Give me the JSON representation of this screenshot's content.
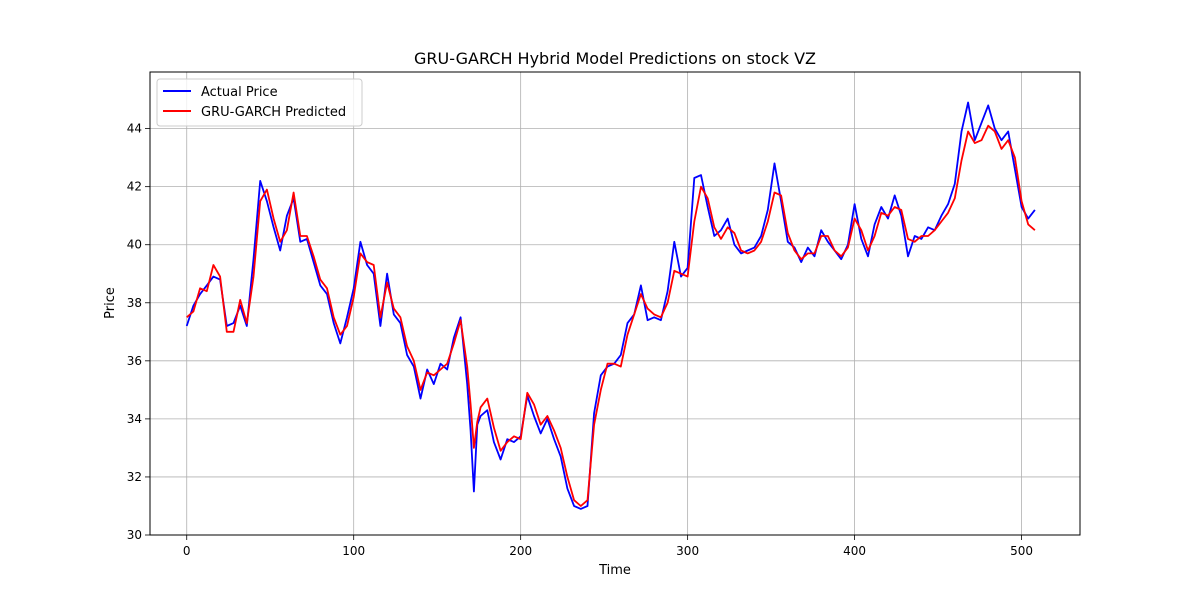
{
  "chart_data": {
    "type": "line",
    "title": "GRU-GARCH Hybrid Model Predictions on stock VZ",
    "xlabel": "Time",
    "ylabel": "Price",
    "xlim": [
      -22,
      535
    ],
    "ylim": [
      30.0,
      45.95
    ],
    "xticks": [
      0,
      100,
      200,
      300,
      400,
      500
    ],
    "yticks": [
      30,
      32,
      34,
      36,
      38,
      40,
      42,
      44
    ],
    "grid": true,
    "legend_position": "upper-left",
    "series": [
      {
        "name": "Actual Price",
        "color": "#0000ff",
        "x": [
          0,
          4,
          8,
          12,
          16,
          20,
          24,
          28,
          32,
          36,
          40,
          44,
          48,
          52,
          56,
          60,
          64,
          68,
          72,
          76,
          80,
          84,
          88,
          92,
          96,
          100,
          104,
          108,
          112,
          116,
          120,
          124,
          128,
          132,
          136,
          140,
          144,
          148,
          152,
          156,
          160,
          164,
          168,
          170,
          172,
          174,
          176,
          180,
          184,
          188,
          192,
          196,
          200,
          204,
          208,
          212,
          216,
          220,
          224,
          228,
          232,
          236,
          240,
          244,
          248,
          252,
          256,
          260,
          264,
          268,
          272,
          276,
          280,
          284,
          288,
          292,
          296,
          300,
          304,
          308,
          312,
          316,
          320,
          324,
          328,
          332,
          336,
          340,
          344,
          348,
          352,
          356,
          360,
          364,
          368,
          372,
          376,
          380,
          384,
          388,
          392,
          396,
          400,
          404,
          408,
          412,
          416,
          420,
          424,
          428,
          432,
          436,
          440,
          444,
          448,
          452,
          456,
          460,
          464,
          468,
          472,
          476,
          480,
          484,
          488,
          492,
          496,
          500,
          504,
          508
        ],
        "values": [
          37.2,
          37.9,
          38.3,
          38.6,
          38.9,
          38.8,
          37.2,
          37.3,
          37.9,
          37.2,
          39.5,
          42.2,
          41.5,
          40.6,
          39.8,
          41.0,
          41.6,
          40.1,
          40.2,
          39.4,
          38.6,
          38.3,
          37.3,
          36.6,
          37.5,
          38.5,
          40.1,
          39.3,
          39.0,
          37.2,
          39.0,
          37.6,
          37.3,
          36.2,
          35.8,
          34.7,
          35.7,
          35.2,
          35.9,
          35.7,
          36.8,
          37.5,
          35.2,
          33.6,
          31.5,
          33.8,
          34.1,
          34.3,
          33.2,
          32.6,
          33.3,
          33.2,
          33.4,
          34.8,
          34.1,
          33.5,
          34.0,
          33.3,
          32.7,
          31.6,
          31.0,
          30.9,
          31.0,
          34.2,
          35.5,
          35.8,
          35.9,
          36.2,
          37.3,
          37.6,
          38.6,
          37.4,
          37.5,
          37.4,
          38.4,
          40.1,
          38.9,
          39.2,
          42.3,
          42.4,
          41.3,
          40.3,
          40.5,
          40.9,
          40.0,
          39.7,
          39.8,
          39.9,
          40.3,
          41.2,
          42.8,
          41.5,
          40.1,
          39.9,
          39.4,
          39.9,
          39.6,
          40.5,
          40.1,
          39.8,
          39.5,
          40.0,
          41.4,
          40.2,
          39.6,
          40.7,
          41.3,
          40.9,
          41.7,
          41.0,
          39.6,
          40.3,
          40.2,
          40.6,
          40.5,
          41.0,
          41.4,
          42.1,
          43.9,
          44.9,
          43.6,
          44.2,
          44.8,
          44.0,
          43.6,
          43.9,
          42.6,
          41.3,
          40.9,
          41.2
        ]
      },
      {
        "name": "GRU-GARCH Predicted",
        "color": "#ff0000",
        "x": [
          0,
          4,
          8,
          12,
          16,
          20,
          24,
          28,
          32,
          36,
          40,
          44,
          48,
          52,
          56,
          60,
          64,
          68,
          72,
          76,
          80,
          84,
          88,
          92,
          96,
          100,
          104,
          108,
          112,
          116,
          120,
          124,
          128,
          132,
          136,
          140,
          144,
          148,
          152,
          156,
          160,
          164,
          168,
          170,
          172,
          174,
          176,
          180,
          184,
          188,
          192,
          196,
          200,
          204,
          208,
          212,
          216,
          220,
          224,
          228,
          232,
          236,
          240,
          244,
          248,
          252,
          256,
          260,
          264,
          268,
          272,
          276,
          280,
          284,
          288,
          292,
          296,
          300,
          304,
          308,
          312,
          316,
          320,
          324,
          328,
          332,
          336,
          340,
          344,
          348,
          352,
          356,
          360,
          364,
          368,
          372,
          376,
          380,
          384,
          388,
          392,
          396,
          400,
          404,
          408,
          412,
          416,
          420,
          424,
          428,
          432,
          436,
          440,
          444,
          448,
          452,
          456,
          460,
          464,
          468,
          472,
          476,
          480,
          484,
          488,
          492,
          496,
          500,
          504,
          508
        ],
        "values": [
          37.5,
          37.7,
          38.5,
          38.4,
          39.3,
          38.9,
          37.0,
          37.0,
          38.1,
          37.3,
          38.9,
          41.5,
          41.9,
          40.9,
          40.1,
          40.5,
          41.8,
          40.3,
          40.3,
          39.6,
          38.8,
          38.5,
          37.5,
          36.9,
          37.2,
          38.2,
          39.7,
          39.4,
          39.3,
          37.5,
          38.7,
          37.8,
          37.5,
          36.5,
          36.0,
          35.0,
          35.6,
          35.5,
          35.7,
          35.9,
          36.6,
          37.4,
          35.8,
          34.5,
          33.0,
          33.9,
          34.4,
          34.7,
          33.7,
          32.9,
          33.2,
          33.4,
          33.3,
          34.9,
          34.5,
          33.8,
          34.1,
          33.6,
          33.0,
          32.0,
          31.2,
          31.0,
          31.2,
          33.8,
          35.0,
          35.9,
          35.9,
          35.8,
          36.9,
          37.6,
          38.3,
          37.8,
          37.6,
          37.5,
          38.0,
          39.1,
          39.0,
          38.9,
          40.8,
          42.0,
          41.6,
          40.6,
          40.2,
          40.6,
          40.4,
          39.8,
          39.7,
          39.8,
          40.1,
          40.8,
          41.8,
          41.7,
          40.4,
          39.8,
          39.5,
          39.7,
          39.7,
          40.3,
          40.3,
          39.8,
          39.6,
          39.9,
          40.9,
          40.5,
          39.8,
          40.3,
          41.1,
          41.0,
          41.3,
          41.2,
          40.2,
          40.1,
          40.3,
          40.3,
          40.5,
          40.8,
          41.1,
          41.6,
          42.9,
          43.9,
          43.5,
          43.6,
          44.1,
          43.9,
          43.3,
          43.6,
          43.0,
          41.5,
          40.7,
          40.5
        ]
      }
    ]
  }
}
